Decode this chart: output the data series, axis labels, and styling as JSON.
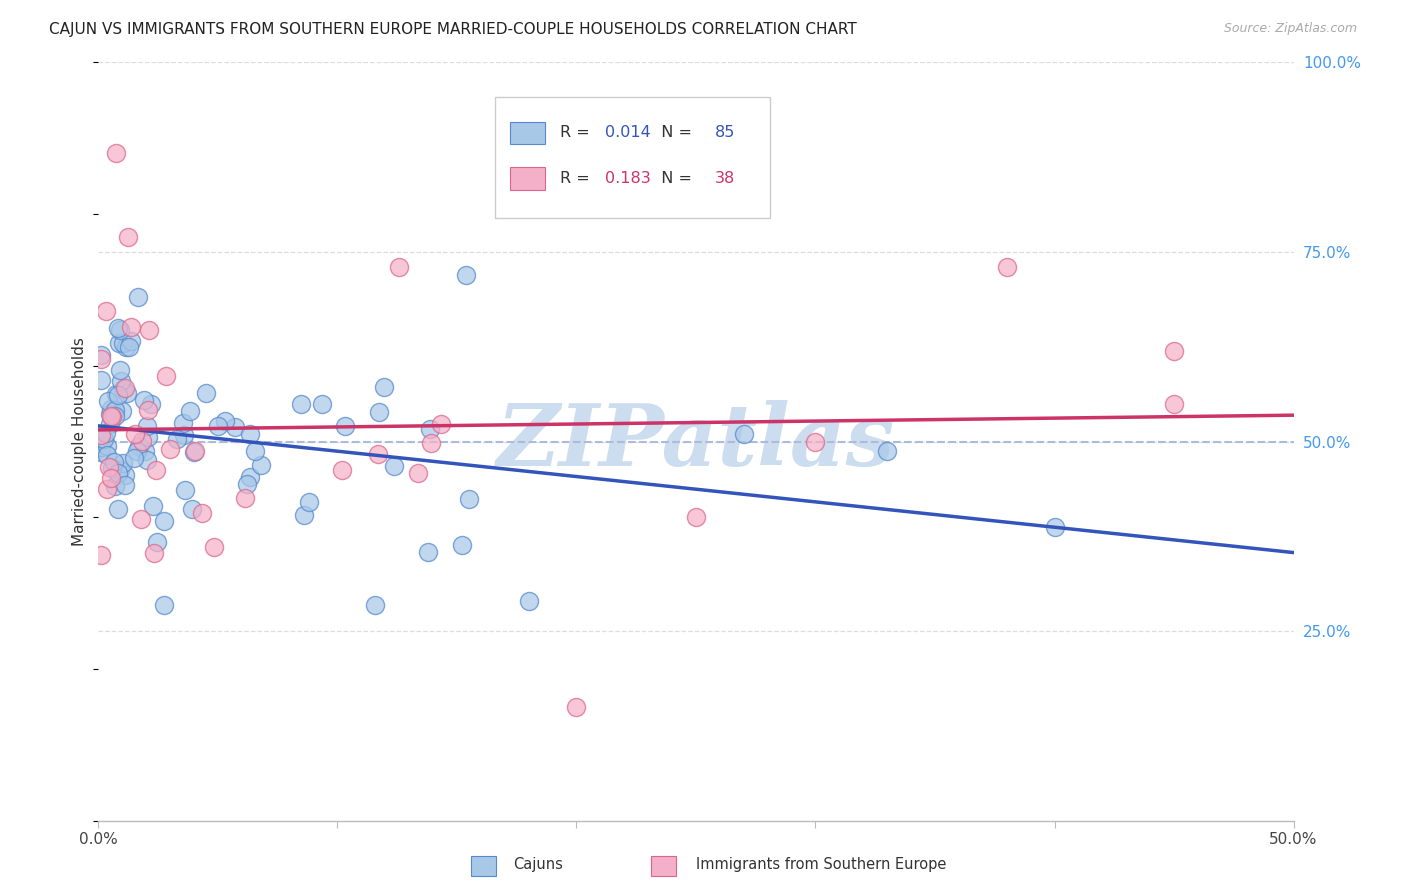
{
  "title": "CAJUN VS IMMIGRANTS FROM SOUTHERN EUROPE MARRIED-COUPLE HOUSEHOLDS CORRELATION CHART",
  "source": "Source: ZipAtlas.com",
  "ylabel": "Married-couple Households",
  "xlim": [
    0.0,
    0.5
  ],
  "ylim": [
    0.0,
    1.0
  ],
  "cajun_fill": "#a8c8e8",
  "cajun_edge": "#5588cc",
  "pink_fill": "#f4b0c8",
  "pink_edge": "#dd6688",
  "cajun_line_color": "#3355bb",
  "pink_line_color": "#cc3366",
  "dashed_line_color": "#aabbdd",
  "grid_color": "#dddddd",
  "right_tick_color": "#4499ee",
  "legend_R1": "0.014",
  "legend_N1": "85",
  "legend_R2": "0.183",
  "legend_N2": "38",
  "legend_label1": "Cajuns",
  "legend_label2": "Immigrants from Southern Europe",
  "watermark_text": "ZIPatlas",
  "watermark_color": "#ccddf0"
}
